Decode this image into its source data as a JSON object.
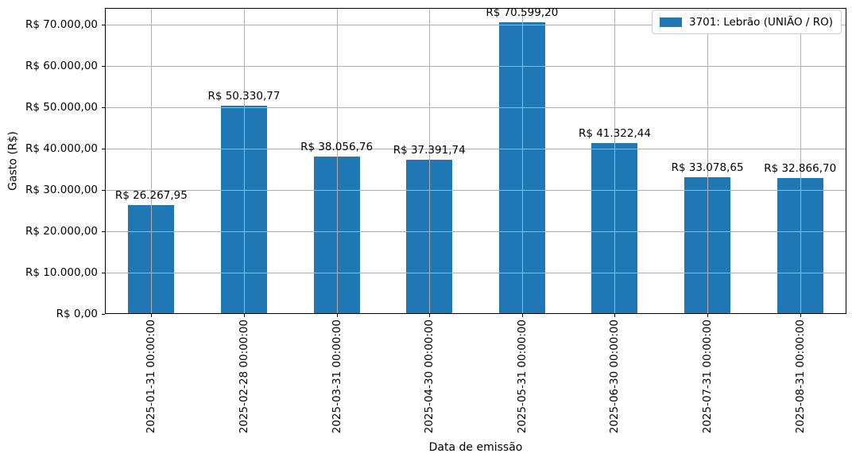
{
  "chart_data": {
    "type": "bar",
    "title": "",
    "xlabel": "Data de emissão",
    "ylabel": "Gasto (R$)",
    "categories": [
      "2025-01-31 00:00:00",
      "2025-02-28 00:00:00",
      "2025-03-31 00:00:00",
      "2025-04-30 00:00:00",
      "2025-05-31 00:00:00",
      "2025-06-30 00:00:00",
      "2025-07-31 00:00:00",
      "2025-08-31 00:00:00"
    ],
    "series": [
      {
        "name": "3701: Lebrão (UNIÃO / RO)",
        "color": "#1f77b4",
        "values": [
          26267.95,
          50330.77,
          38056.76,
          37391.74,
          70599.2,
          41322.44,
          33078.65,
          32866.7
        ]
      }
    ],
    "bar_value_labels": [
      "R$ 26.267,95",
      "R$ 50.330,77",
      "R$ 38.056,76",
      "R$ 37.391,74",
      "R$ 70.599,20",
      "R$ 41.322,44",
      "R$ 33.078,65",
      "R$ 32.866,70"
    ],
    "yticks": {
      "values": [
        0,
        10000,
        20000,
        30000,
        40000,
        50000,
        60000,
        70000
      ],
      "labels": [
        "R$ 0,00",
        "R$ 10.000,00",
        "R$ 20.000,00",
        "R$ 30.000,00",
        "R$ 40.000,00",
        "R$ 50.000,00",
        "R$ 60.000,00",
        "R$ 70.000,00"
      ]
    },
    "ylim": [
      0,
      74038
    ],
    "grid": true,
    "legend_position": "upper right",
    "x_tick_rotation_deg": 90,
    "bar_width_fraction": 0.5
  },
  "colors": {
    "bar": "#1f77b4",
    "grid": "#b0b0b0",
    "axis": "#000000",
    "text": "#000000",
    "legend_border": "#cccccc",
    "background": "#ffffff"
  }
}
